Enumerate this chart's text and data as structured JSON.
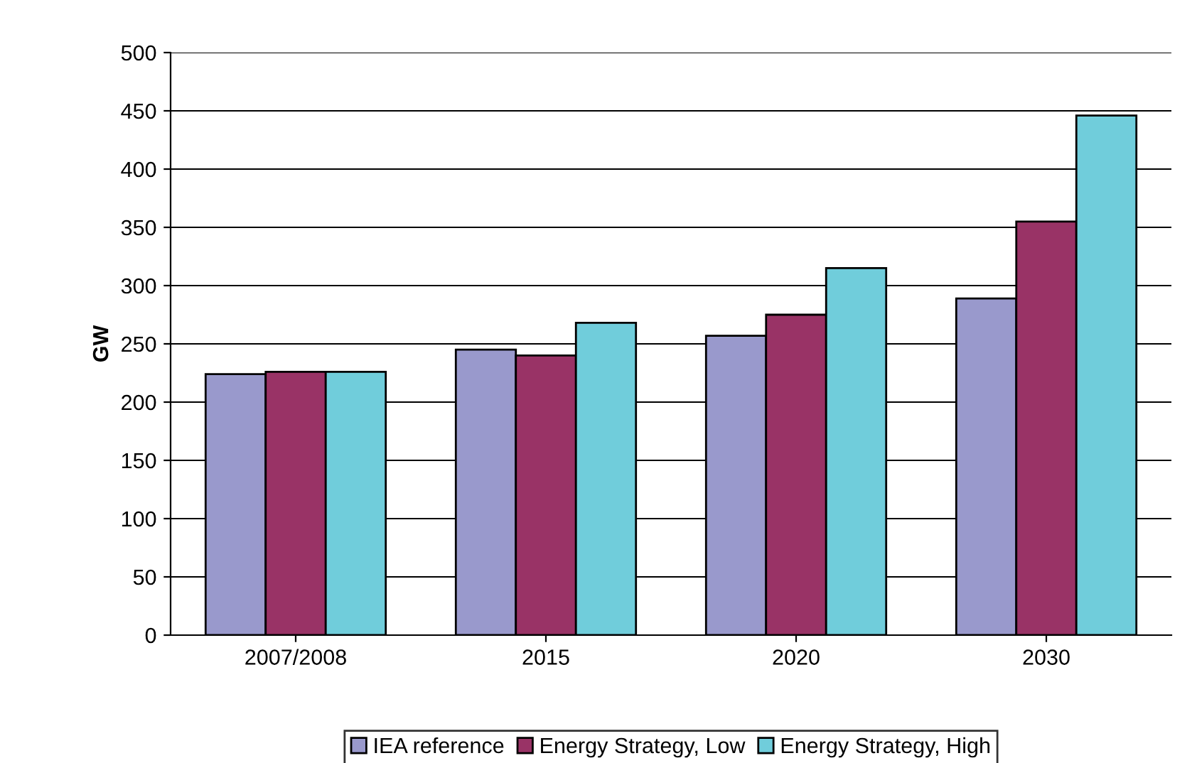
{
  "chart_data": {
    "type": "bar",
    "ylabel": "GW",
    "categories": [
      "2007/2008",
      "2015",
      "2020",
      "2030"
    ],
    "series": [
      {
        "name": "IEA reference",
        "color": "#9999cc",
        "values": [
          224,
          245,
          257,
          289
        ]
      },
      {
        "name": "Energy Strategy, Low",
        "color": "#993366",
        "values": [
          226,
          240,
          275,
          355
        ]
      },
      {
        "name": "Energy Strategy, High",
        "color": "#70cddb",
        "values": [
          226,
          268,
          315,
          446
        ]
      }
    ],
    "ylim": [
      0,
      500
    ],
    "yticks": [
      0,
      50,
      100,
      150,
      200,
      250,
      300,
      350,
      400,
      450,
      500
    ],
    "grid": "y",
    "legend": "bottom"
  }
}
